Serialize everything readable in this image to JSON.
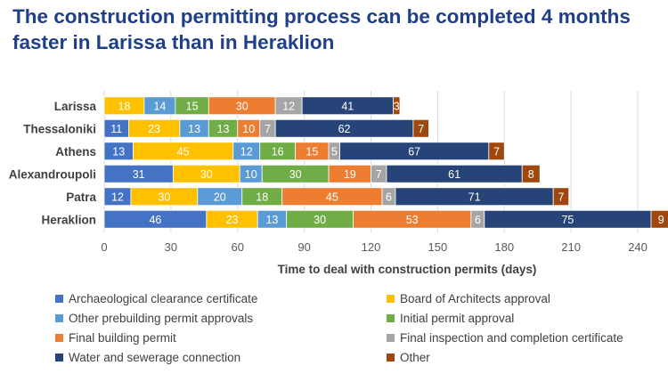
{
  "title": "The construction permitting process can be completed 4 months faster in Larissa than in Heraklion",
  "chart_data": {
    "type": "bar",
    "orientation": "horizontal",
    "stacked": true,
    "categories": [
      "Larissa",
      "Thessaloniki",
      "Athens",
      "Alexandroupoli",
      "Patra",
      "Heraklion"
    ],
    "series": [
      {
        "name": "Archaeological clearance certificate",
        "color": "#4472c4",
        "values": [
          0,
          11,
          13,
          31,
          12,
          46
        ]
      },
      {
        "name": "Board of Architects approval",
        "color": "#ffc000",
        "values": [
          18,
          23,
          45,
          30,
          30,
          23
        ]
      },
      {
        "name": "Other prebuilding permit approvals",
        "color": "#5b9bd5",
        "values": [
          14,
          13,
          12,
          10,
          20,
          13
        ]
      },
      {
        "name": "Initial permit approval",
        "color": "#70ad47",
        "values": [
          15,
          13,
          16,
          30,
          18,
          30
        ]
      },
      {
        "name": "Final building permit",
        "color": "#ed7d31",
        "values": [
          30,
          10,
          15,
          19,
          45,
          53
        ]
      },
      {
        "name": "Final inspection and completion certificate",
        "color": "#a5a5a5",
        "values": [
          12,
          7,
          5,
          7,
          6,
          6
        ]
      },
      {
        "name": "Water and sewerage connection",
        "color": "#264478",
        "values": [
          41,
          62,
          67,
          61,
          71,
          75
        ]
      },
      {
        "name": "Other",
        "color": "#9e480e",
        "values": [
          3,
          7,
          7,
          8,
          7,
          9
        ]
      }
    ],
    "xlabel": "Time to deal with construction permits (days)",
    "ylabel": "",
    "xlim": [
      0,
      250
    ],
    "xticks": [
      0,
      30,
      60,
      90,
      120,
      150,
      180,
      210,
      240
    ],
    "grid": true,
    "legend_position": "bottom"
  }
}
